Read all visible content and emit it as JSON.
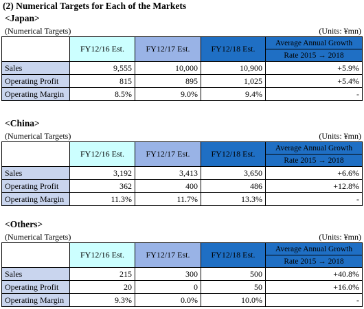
{
  "main_title": "(2) Numerical Targets for Each of the Markets",
  "columns": [
    "FY12/16 Est.",
    "FY12/17 Est.",
    "FY12/18 Est.",
    "Average Annual Growth",
    "Rate  2015 → 2018"
  ],
  "sub_label": "(Numerical Targets)",
  "units": "(Units:  ¥mn)",
  "sections": [
    {
      "title": "<Japan>",
      "rows": [
        {
          "label": "Sales",
          "v1": "9,555",
          "v2": "10,000",
          "v3": "10,900",
          "g": "+5.9%"
        },
        {
          "label": "Operating Profit",
          "v1": "815",
          "v2": "895",
          "v3": "1,025",
          "g": "+5.4%"
        },
        {
          "label": "Operating Margin",
          "v1": "8.5%",
          "v2": "9.0%",
          "v3": "9.4%",
          "g": "-"
        }
      ]
    },
    {
      "title": "<China>",
      "rows": [
        {
          "label": "Sales",
          "v1": "3,192",
          "v2": "3,413",
          "v3": "3,650",
          "g": "+6.6%"
        },
        {
          "label": "Operating Profit",
          "v1": "362",
          "v2": "400",
          "v3": "486",
          "g": "+12.8%"
        },
        {
          "label": "Operating Margin",
          "v1": "11.3%",
          "v2": "11.7%",
          "v3": "13.3%",
          "g": "-"
        }
      ]
    },
    {
      "title": "<Others>",
      "rows": [
        {
          "label": "Sales",
          "v1": "215",
          "v2": "300",
          "v3": "500",
          "g": "+40.8%"
        },
        {
          "label": "Operating Profit",
          "v1": "20",
          "v2": "0",
          "v3": "50",
          "g": "+16.0%"
        },
        {
          "label": "Operating Margin",
          "v1": "9.3%",
          "v2": "0.0%",
          "v3": "10.0%",
          "g": "-"
        }
      ]
    }
  ]
}
